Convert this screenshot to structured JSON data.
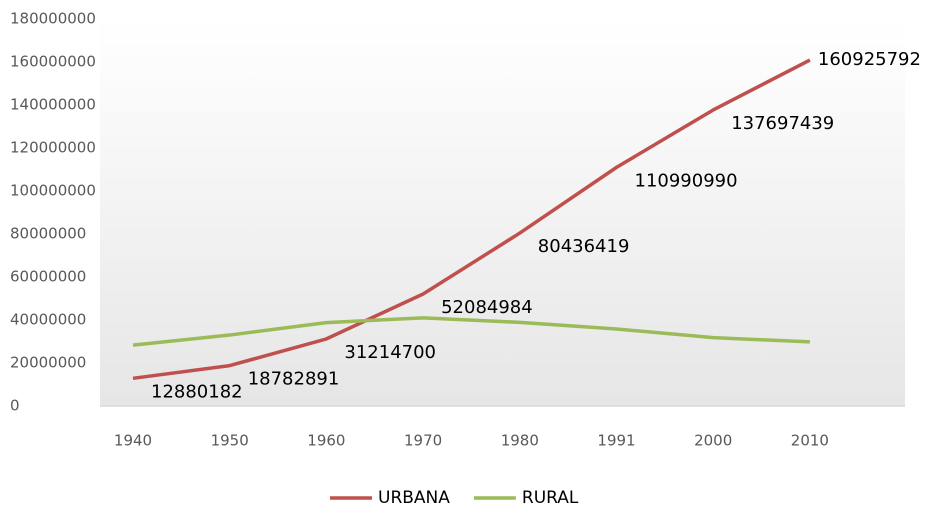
{
  "chart_data": {
    "type": "line",
    "categories": [
      "1940",
      "1950",
      "1960",
      "1970",
      "1980",
      "1991",
      "2000",
      "2010"
    ],
    "series": [
      {
        "name": "URBANA",
        "color": "#c0504d",
        "values": [
          12880182,
          18782891,
          31214700,
          52084984,
          80436419,
          110990990,
          137697439,
          160925792
        ],
        "data_labels": true
      },
      {
        "name": "RURAL",
        "color": "#9bbb59",
        "values": [
          28300000,
          33000000,
          38800000,
          41000000,
          38900000,
          35800000,
          31800000,
          29800000
        ],
        "data_labels": false
      }
    ],
    "ylim": [
      0,
      180000000
    ],
    "yticks": [
      0,
      20000000,
      40000000,
      60000000,
      80000000,
      100000000,
      120000000,
      140000000,
      160000000,
      180000000
    ],
    "legend": "bottom"
  }
}
